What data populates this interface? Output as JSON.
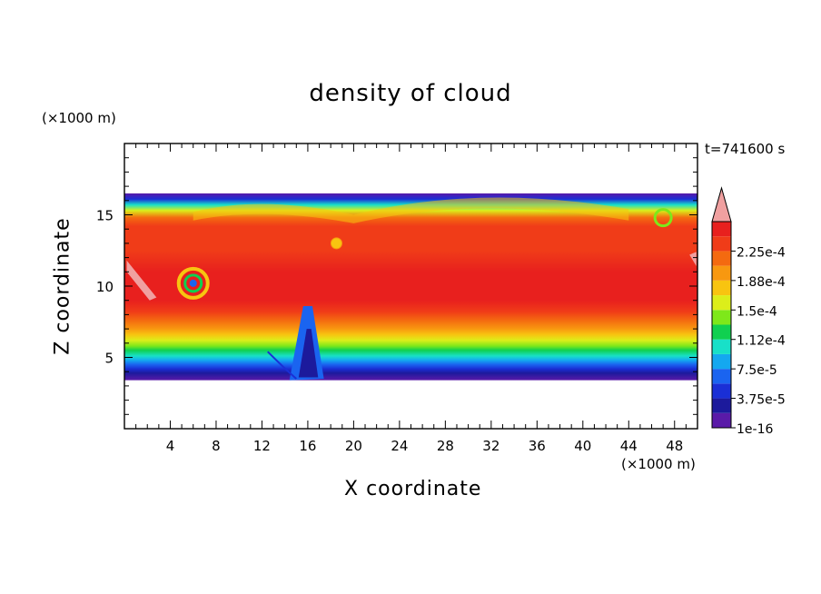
{
  "chart_data": {
    "type": "heatmap",
    "title": "density of cloud",
    "xlabel": "X coordinate",
    "ylabel": "Z coordinate",
    "x_unit": "(×1000 m)",
    "z_unit": "(×1000 m)",
    "time_label": "t=741600 s",
    "xlim": [
      0,
      50
    ],
    "zlim": [
      0,
      20
    ],
    "x_ticks": [
      4,
      8,
      12,
      16,
      20,
      24,
      28,
      32,
      36,
      40,
      44,
      48
    ],
    "z_ticks": [
      5,
      10,
      15
    ],
    "cloud_base_km": 3.4,
    "cloud_top_km": 16.5,
    "colorbar": {
      "levels": [
        1e-16,
        1.875e-05,
        3.75e-05,
        5.625e-05,
        7.5e-05,
        9.375e-05,
        0.0001125,
        0.00013125,
        0.00015,
        0.00016875,
        0.0001875,
        0.00020625,
        0.000225,
        0.00024375
      ],
      "tick_labels": [
        "1e-16",
        "3.75e-5",
        "7.5e-5",
        "1.12e-4",
        "1.5e-4",
        "1.88e-4",
        "2.25e-4"
      ],
      "colors": [
        "#5a1aa8",
        "#1c1a9c",
        "#1a2fd6",
        "#1a64f0",
        "#14a8f0",
        "#18e0c8",
        "#10d050",
        "#7ee81a",
        "#dcee1a",
        "#f8c410",
        "#f89810",
        "#f46a10",
        "#f03c18",
        "#e8201e"
      ],
      "over_color": "#f0a0a0",
      "extend": "max"
    }
  }
}
